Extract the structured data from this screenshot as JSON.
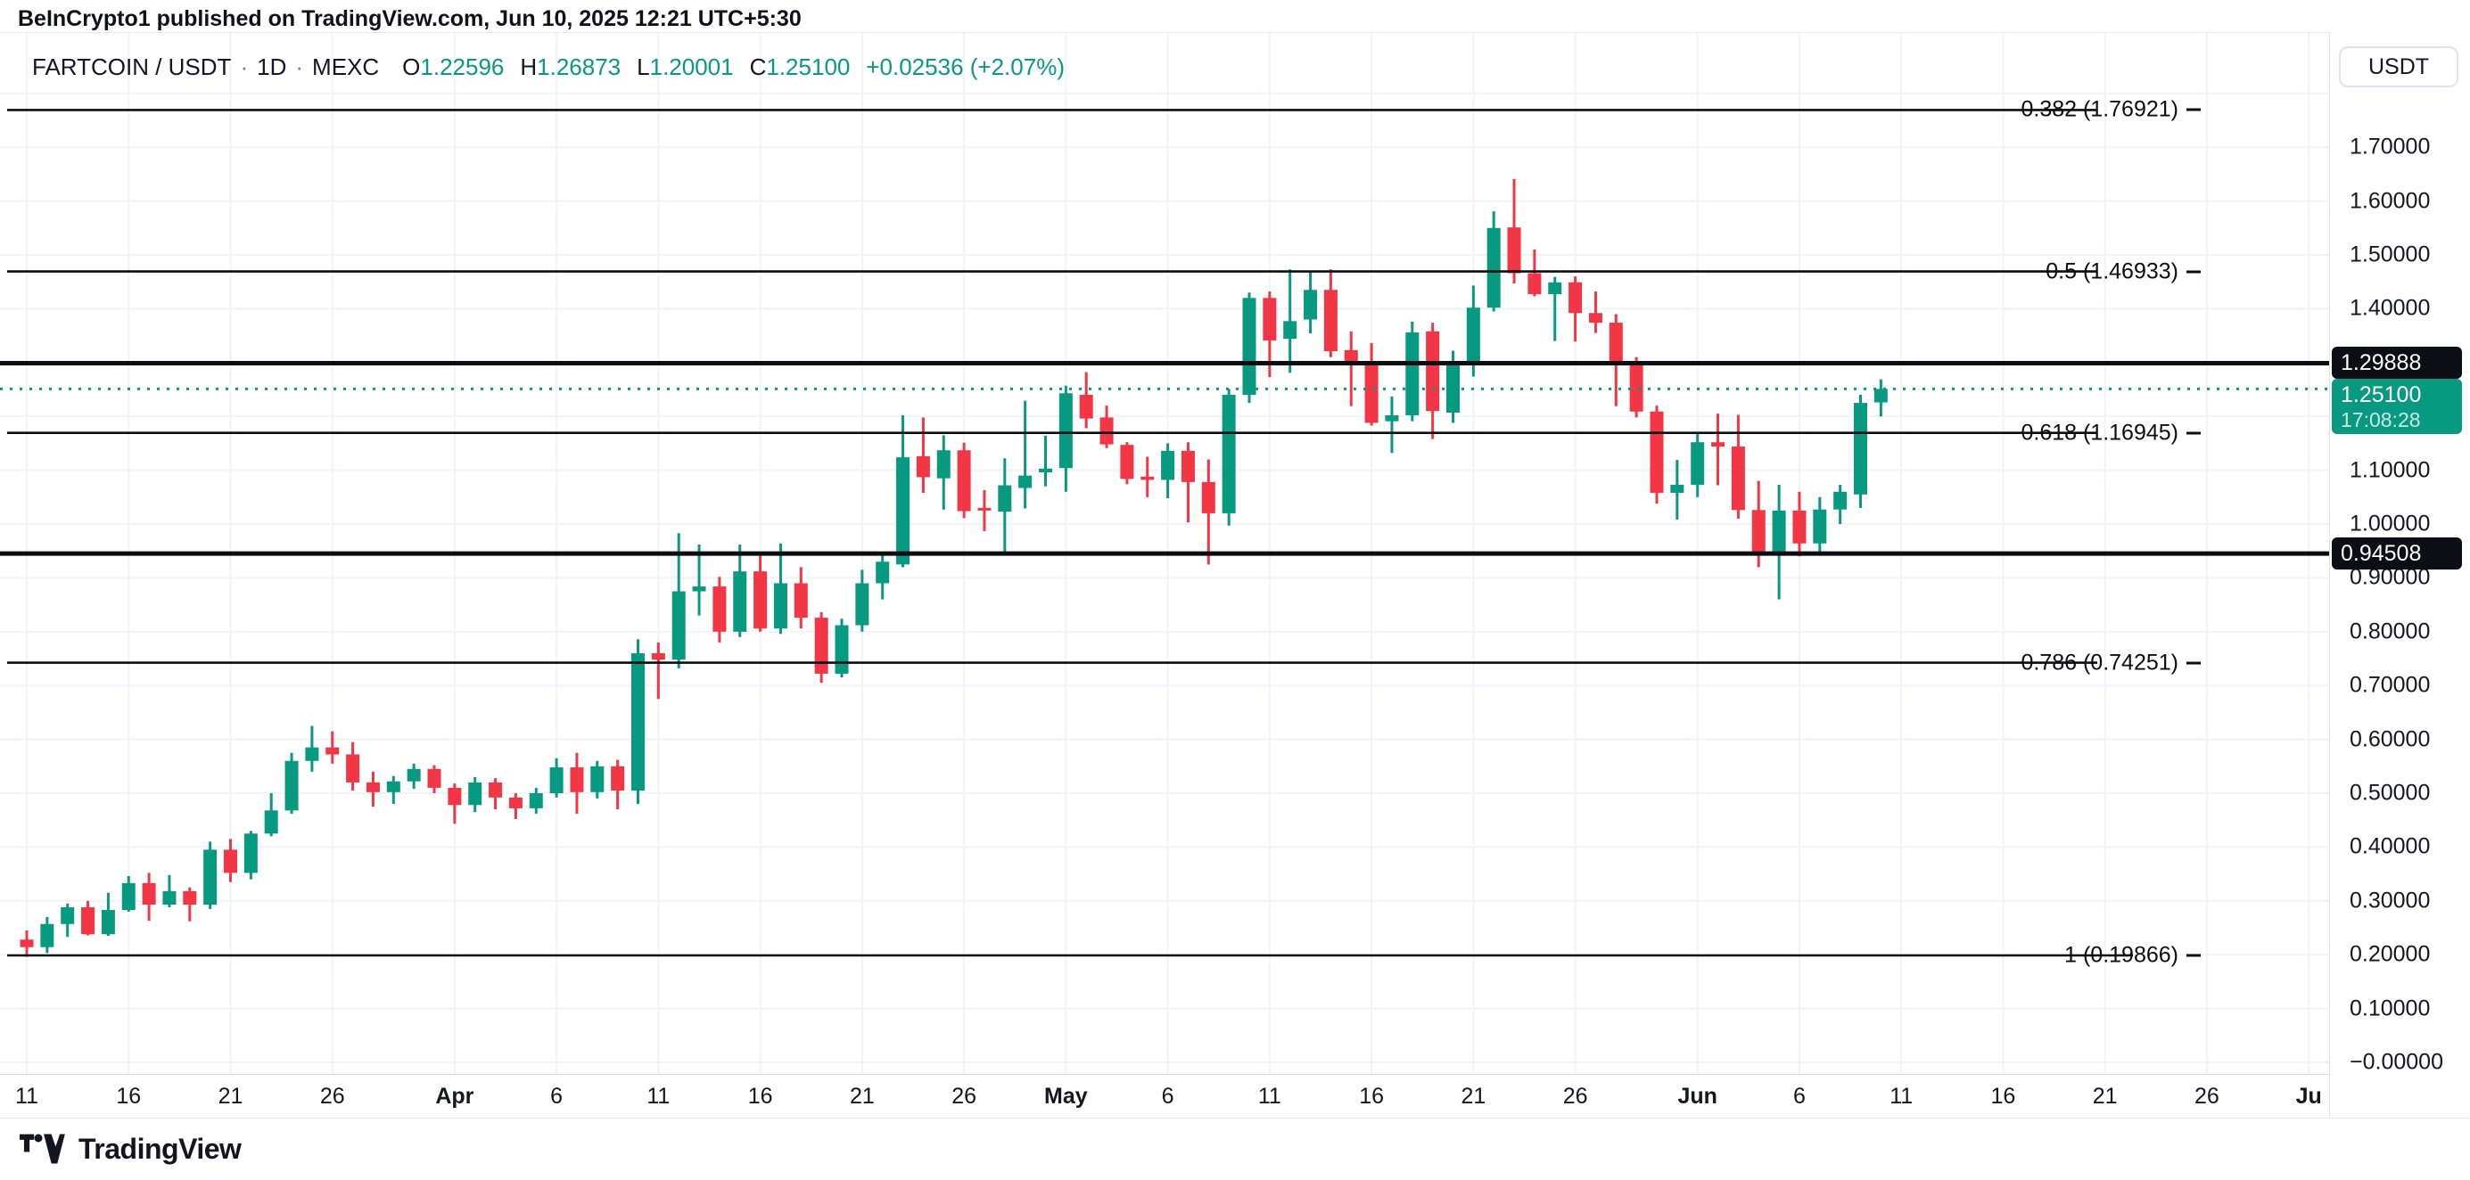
{
  "attribution": "BeInCrypto1 published on TradingView.com, Jun 10, 2025 12:21 UTC+5:30",
  "toolbar": {
    "symbol": "FARTCOIN / USDT",
    "separator": "·",
    "interval": "1D",
    "exchange": "MEXC",
    "o_label": "O",
    "o_value": "1.22596",
    "h_label": "H",
    "h_value": "1.26873",
    "l_label": "L",
    "l_value": "1.20001",
    "c_label": "C",
    "c_value": "1.25100",
    "change": "+0.02536 (+2.07%)"
  },
  "price_scale": {
    "currency_button": "USDT",
    "ticks": [
      {
        "text": "1.70000",
        "price": 1.7
      },
      {
        "text": "1.60000",
        "price": 1.6
      },
      {
        "text": "1.50000",
        "price": 1.5
      },
      {
        "text": "1.40000",
        "price": 1.4
      },
      {
        "text": "1.10000",
        "price": 1.1
      },
      {
        "text": "1.00000",
        "price": 1.0
      },
      {
        "text": "0.90000",
        "price": 0.9
      },
      {
        "text": "0.80000",
        "price": 0.8
      },
      {
        "text": "0.70000",
        "price": 0.7
      },
      {
        "text": "0.60000",
        "price": 0.6
      },
      {
        "text": "0.50000",
        "price": 0.5
      },
      {
        "text": "0.40000",
        "price": 0.4
      },
      {
        "text": "0.30000",
        "price": 0.3
      },
      {
        "text": "0.20000",
        "price": 0.2
      },
      {
        "text": "0.10000",
        "price": 0.1
      },
      {
        "text": "−0.00000",
        "price": 0.0
      }
    ],
    "badges": [
      {
        "text": "1.29888",
        "price": 1.29888,
        "type": "black"
      },
      {
        "text": "1.25100",
        "time": "17:08:28",
        "price": 1.251,
        "type": "green"
      },
      {
        "text": "0.94508",
        "price": 0.94508,
        "type": "black"
      }
    ]
  },
  "footer": {
    "brand": "TradingView"
  },
  "colors": {
    "up": "#089981",
    "down": "#f23645",
    "grid": "#f0f3fa",
    "text": "#131722",
    "drawing_line": "#0b0d12",
    "border": "#e0e3eb",
    "price_line": "#089981"
  },
  "chart_data": {
    "type": "candlestick",
    "title": "FARTCOIN / USDT · 1D · MEXC",
    "legend_position": "top-left",
    "grid": true,
    "ylim": [
      0.0,
      1.9
    ],
    "y_gridline_step": 0.1,
    "x_axis_ticks": [
      {
        "label": "11",
        "n": 0,
        "bold": false
      },
      {
        "label": "16",
        "n": 5,
        "bold": false
      },
      {
        "label": "21",
        "n": 10,
        "bold": false
      },
      {
        "label": "26",
        "n": 15,
        "bold": false
      },
      {
        "label": "Apr",
        "n": 21,
        "bold": true
      },
      {
        "label": "6",
        "n": 26,
        "bold": false
      },
      {
        "label": "11",
        "n": 31,
        "bold": false
      },
      {
        "label": "16",
        "n": 36,
        "bold": false
      },
      {
        "label": "21",
        "n": 41,
        "bold": false
      },
      {
        "label": "26",
        "n": 46,
        "bold": false
      },
      {
        "label": "May",
        "n": 51,
        "bold": true
      },
      {
        "label": "6",
        "n": 56,
        "bold": false
      },
      {
        "label": "11",
        "n": 61,
        "bold": false
      },
      {
        "label": "16",
        "n": 66,
        "bold": false
      },
      {
        "label": "21",
        "n": 71,
        "bold": false
      },
      {
        "label": "26",
        "n": 76,
        "bold": false
      },
      {
        "label": "Jun",
        "n": 82,
        "bold": true
      },
      {
        "label": "6",
        "n": 87,
        "bold": false
      },
      {
        "label": "11",
        "n": 92,
        "bold": false
      },
      {
        "label": "16",
        "n": 97,
        "bold": false
      },
      {
        "label": "21",
        "n": 102,
        "bold": false
      },
      {
        "label": "26",
        "n": 107,
        "bold": false
      },
      {
        "label": "Ju",
        "n": 112,
        "bold": true
      }
    ],
    "fib_levels": [
      {
        "label": "0.382 (1.76921)",
        "price": 1.76921,
        "line_end": 2352
      },
      {
        "label": "0.5 (1.46933)",
        "price": 1.46933,
        "line_end": 2352
      },
      {
        "label": "0.618 (1.16945)",
        "price": 1.16945,
        "line_end": 2352
      },
      {
        "label": "0.786 (0.74251)",
        "price": 0.74251,
        "line_end": 2352
      },
      {
        "label": "1 (0.19866)",
        "price": 0.19866,
        "line_end": 2392
      }
    ],
    "horizontal_lines": [
      {
        "price": 1.29888,
        "badge": "1.29888"
      },
      {
        "price": 0.94508,
        "badge": "0.94508"
      }
    ],
    "current_price_line": {
      "price": 1.251,
      "time": "17:08:28"
    },
    "candles_ohlc": [
      [
        0.228,
        0.245,
        0.196,
        0.214
      ],
      [
        0.214,
        0.27,
        0.203,
        0.257
      ],
      [
        0.257,
        0.295,
        0.233,
        0.288
      ],
      [
        0.288,
        0.3,
        0.236,
        0.238
      ],
      [
        0.238,
        0.315,
        0.235,
        0.283
      ],
      [
        0.283,
        0.346,
        0.28,
        0.333
      ],
      [
        0.333,
        0.352,
        0.263,
        0.293
      ],
      [
        0.293,
        0.348,
        0.288,
        0.318
      ],
      [
        0.318,
        0.325,
        0.262,
        0.293
      ],
      [
        0.293,
        0.41,
        0.285,
        0.395
      ],
      [
        0.395,
        0.415,
        0.335,
        0.352
      ],
      [
        0.352,
        0.43,
        0.34,
        0.425
      ],
      [
        0.425,
        0.5,
        0.42,
        0.468
      ],
      [
        0.468,
        0.575,
        0.462,
        0.56
      ],
      [
        0.56,
        0.625,
        0.54,
        0.585
      ],
      [
        0.585,
        0.615,
        0.555,
        0.572
      ],
      [
        0.572,
        0.595,
        0.505,
        0.52
      ],
      [
        0.52,
        0.54,
        0.475,
        0.502
      ],
      [
        0.502,
        0.532,
        0.48,
        0.522
      ],
      [
        0.522,
        0.555,
        0.508,
        0.545
      ],
      [
        0.545,
        0.552,
        0.5,
        0.51
      ],
      [
        0.51,
        0.518,
        0.443,
        0.478
      ],
      [
        0.478,
        0.53,
        0.465,
        0.52
      ],
      [
        0.52,
        0.528,
        0.47,
        0.492
      ],
      [
        0.492,
        0.5,
        0.452,
        0.472
      ],
      [
        0.472,
        0.51,
        0.462,
        0.5
      ],
      [
        0.5,
        0.565,
        0.492,
        0.548
      ],
      [
        0.548,
        0.575,
        0.462,
        0.502
      ],
      [
        0.502,
        0.56,
        0.49,
        0.55
      ],
      [
        0.55,
        0.562,
        0.47,
        0.505
      ],
      [
        0.505,
        0.786,
        0.48,
        0.76
      ],
      [
        0.76,
        0.78,
        0.675,
        0.748
      ],
      [
        0.748,
        0.983,
        0.732,
        0.875
      ],
      [
        0.875,
        0.962,
        0.83,
        0.884
      ],
      [
        0.884,
        0.902,
        0.78,
        0.8
      ],
      [
        0.8,
        0.962,
        0.79,
        0.912
      ],
      [
        0.912,
        0.942,
        0.8,
        0.806
      ],
      [
        0.806,
        0.964,
        0.796,
        0.89
      ],
      [
        0.89,
        0.92,
        0.806,
        0.826
      ],
      [
        0.826,
        0.836,
        0.705,
        0.722
      ],
      [
        0.722,
        0.824,
        0.715,
        0.812
      ],
      [
        0.812,
        0.915,
        0.8,
        0.89
      ],
      [
        0.89,
        0.945,
        0.86,
        0.93
      ],
      [
        0.925,
        1.202,
        0.92,
        1.124
      ],
      [
        1.126,
        1.198,
        1.058,
        1.087
      ],
      [
        1.085,
        1.165,
        1.027,
        1.137
      ],
      [
        1.137,
        1.151,
        1.011,
        1.024
      ],
      [
        1.03,
        1.063,
        0.987,
        1.025
      ],
      [
        1.023,
        1.122,
        0.943,
        1.072
      ],
      [
        1.067,
        1.229,
        1.029,
        1.09
      ],
      [
        1.096,
        1.164,
        1.07,
        1.103
      ],
      [
        1.104,
        1.257,
        1.06,
        1.243
      ],
      [
        1.24,
        1.282,
        1.178,
        1.196
      ],
      [
        1.198,
        1.22,
        1.141,
        1.148
      ],
      [
        1.147,
        1.152,
        1.074,
        1.084
      ],
      [
        1.088,
        1.125,
        1.05,
        1.082
      ],
      [
        1.082,
        1.15,
        1.048,
        1.136
      ],
      [
        1.136,
        1.152,
        1.003,
        1.078
      ],
      [
        1.078,
        1.12,
        0.925,
        1.02
      ],
      [
        1.02,
        1.251,
        0.997,
        1.24
      ],
      [
        1.24,
        1.43,
        1.225,
        1.42
      ],
      [
        1.42,
        1.432,
        1.273,
        1.341
      ],
      [
        1.344,
        1.473,
        1.281,
        1.377
      ],
      [
        1.38,
        1.471,
        1.354,
        1.435
      ],
      [
        1.435,
        1.473,
        1.31,
        1.321
      ],
      [
        1.323,
        1.358,
        1.219,
        1.301
      ],
      [
        1.299,
        1.336,
        1.183,
        1.188
      ],
      [
        1.191,
        1.237,
        1.132,
        1.202
      ],
      [
        1.202,
        1.376,
        1.191,
        1.356
      ],
      [
        1.358,
        1.374,
        1.158,
        1.21
      ],
      [
        1.207,
        1.322,
        1.188,
        1.298
      ],
      [
        1.298,
        1.443,
        1.274,
        1.402
      ],
      [
        1.402,
        1.581,
        1.395,
        1.55
      ],
      [
        1.551,
        1.641,
        1.447,
        1.466
      ],
      [
        1.466,
        1.51,
        1.423,
        1.427
      ],
      [
        1.427,
        1.459,
        1.34,
        1.449
      ],
      [
        1.449,
        1.46,
        1.339,
        1.392
      ],
      [
        1.392,
        1.432,
        1.355,
        1.374
      ],
      [
        1.374,
        1.39,
        1.219,
        1.298
      ],
      [
        1.298,
        1.31,
        1.198,
        1.209
      ],
      [
        1.209,
        1.22,
        1.038,
        1.058
      ],
      [
        1.058,
        1.119,
        1.008,
        1.073
      ],
      [
        1.073,
        1.171,
        1.05,
        1.152
      ],
      [
        1.152,
        1.205,
        1.072,
        1.144
      ],
      [
        1.144,
        1.203,
        1.01,
        1.026
      ],
      [
        1.026,
        1.08,
        0.92,
        0.947
      ],
      [
        0.947,
        1.073,
        0.86,
        1.025
      ],
      [
        1.025,
        1.06,
        0.94,
        0.964
      ],
      [
        0.964,
        1.05,
        0.945,
        1.027
      ],
      [
        1.027,
        1.073,
        1.0,
        1.06
      ],
      [
        1.055,
        1.24,
        1.03,
        1.225
      ],
      [
        1.22596,
        1.26873,
        1.20001,
        1.251
      ]
    ]
  }
}
